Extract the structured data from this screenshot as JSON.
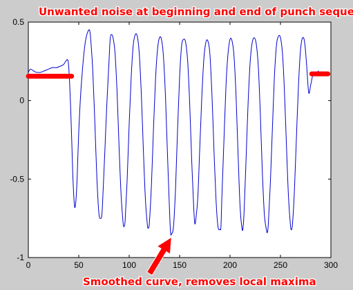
{
  "chart_data": {
    "type": "line",
    "xlim": [
      0,
      300
    ],
    "ylim": [
      -1,
      0.5
    ],
    "xticks": [
      0,
      50,
      100,
      150,
      200,
      250,
      300
    ],
    "xtick_labels": [
      "0",
      "50",
      "100",
      "150",
      "200",
      "250",
      "300"
    ],
    "yticks": [
      0.5,
      0,
      -0.5,
      -1
    ],
    "ytick_labels": [
      "0.5",
      "0",
      "-0.5",
      "-1"
    ],
    "grid": false,
    "line_color": "#0000cc",
    "series": [
      {
        "x": [
          0,
          2,
          5,
          8,
          12,
          16,
          20,
          24,
          28,
          32,
          35,
          37,
          39,
          40,
          41,
          42,
          43,
          44,
          45,
          46,
          47,
          48,
          49,
          50,
          52,
          54,
          56,
          58,
          60,
          61,
          62,
          64,
          66,
          68,
          70,
          72,
          73,
          74,
          76,
          78,
          80,
          81,
          82,
          84,
          86,
          88,
          90,
          92,
          94,
          95,
          96,
          98,
          100,
          102,
          104,
          106,
          108,
          110,
          112,
          114,
          116,
          118,
          119,
          120,
          122,
          124,
          126,
          128,
          130,
          132,
          134,
          136,
          138,
          140,
          141,
          142,
          144,
          146,
          148,
          150,
          152,
          154,
          156,
          158,
          160,
          162,
          164,
          165,
          166,
          168,
          170,
          172,
          174,
          176,
          178,
          180,
          182,
          184,
          186,
          188,
          190,
          191,
          192,
          194,
          196,
          198,
          200,
          202,
          204,
          206,
          208,
          210,
          212,
          213,
          214,
          216,
          218,
          220,
          222,
          224,
          226,
          228,
          230,
          232,
          234,
          236,
          237,
          238,
          240,
          242,
          244,
          246,
          248,
          250,
          252,
          254,
          256,
          258,
          260,
          261,
          262,
          264,
          266,
          268,
          270,
          272,
          274,
          276,
          278,
          280,
          282,
          284,
          286,
          288
        ],
        "y": [
          0.18,
          0.2,
          0.19,
          0.18,
          0.18,
          0.19,
          0.2,
          0.21,
          0.21,
          0.22,
          0.23,
          0.25,
          0.26,
          0.22,
          0.1,
          -0.05,
          -0.25,
          -0.45,
          -0.6,
          -0.68,
          -0.65,
          -0.55,
          -0.38,
          -0.2,
          0.05,
          0.22,
          0.35,
          0.42,
          0.45,
          0.44,
          0.38,
          0.18,
          -0.15,
          -0.5,
          -0.72,
          -0.75,
          -0.72,
          -0.6,
          -0.3,
          0.0,
          0.25,
          0.38,
          0.42,
          0.4,
          0.3,
          0.05,
          -0.3,
          -0.6,
          -0.78,
          -0.8,
          -0.76,
          -0.5,
          -0.15,
          0.15,
          0.35,
          0.42,
          0.41,
          0.3,
          0.05,
          -0.3,
          -0.62,
          -0.79,
          -0.81,
          -0.78,
          -0.55,
          -0.2,
          0.12,
          0.32,
          0.4,
          0.39,
          0.28,
          0.02,
          -0.35,
          -0.7,
          -0.84,
          -0.85,
          -0.8,
          -0.55,
          -0.18,
          0.15,
          0.35,
          0.39,
          0.37,
          0.25,
          -0.02,
          -0.38,
          -0.68,
          -0.78,
          -0.76,
          -0.62,
          -0.3,
          0.02,
          0.26,
          0.37,
          0.38,
          0.3,
          0.05,
          -0.3,
          -0.62,
          -0.8,
          -0.82,
          -0.8,
          -0.6,
          -0.25,
          0.1,
          0.3,
          0.39,
          0.38,
          0.28,
          0.02,
          -0.35,
          -0.68,
          -0.82,
          -0.8,
          -0.7,
          -0.35,
          0.0,
          0.25,
          0.37,
          0.4,
          0.36,
          0.22,
          -0.08,
          -0.45,
          -0.72,
          -0.82,
          -0.84,
          -0.78,
          -0.52,
          -0.18,
          0.15,
          0.35,
          0.41,
          0.4,
          0.3,
          0.05,
          -0.3,
          -0.62,
          -0.8,
          -0.82,
          -0.78,
          -0.55,
          -0.2,
          0.12,
          0.33,
          0.4,
          0.37,
          0.22,
          0.05,
          0.1,
          0.16,
          0.17,
          0.18,
          0.19
        ]
      }
    ],
    "noise_markers": [
      {
        "x": [
          0,
          43
        ],
        "y": [
          0.155,
          0.155
        ]
      },
      {
        "x": [
          281,
          297
        ],
        "y": [
          0.17,
          0.17
        ]
      }
    ],
    "annotations": {
      "top": "Unwanted noise at beginning and end of punch sequence",
      "bottom": "Smoothed curve, removes local maxima",
      "arrow_tip": {
        "x": 142,
        "y": -0.87
      }
    }
  }
}
